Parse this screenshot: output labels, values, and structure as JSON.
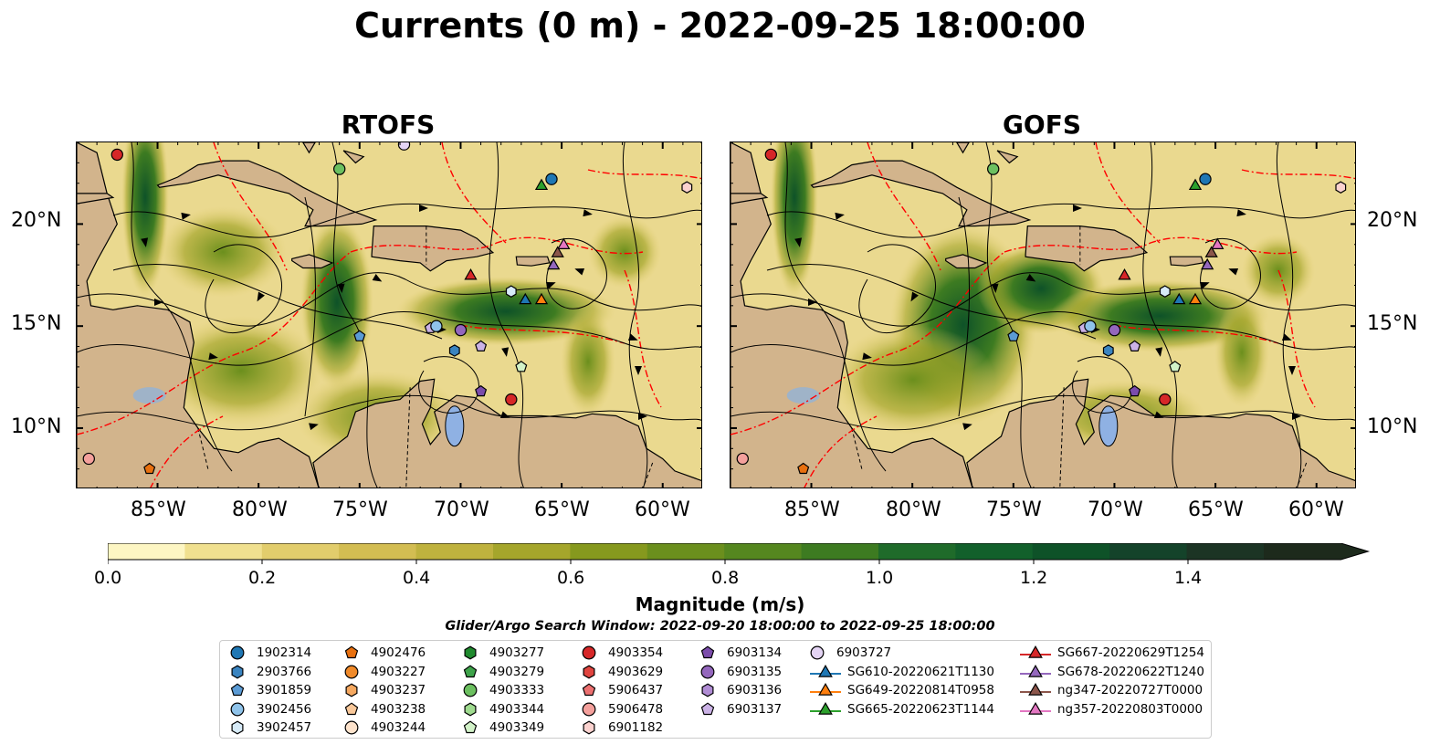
{
  "title": "Currents (0 m) - 2022-09-25 18:00:00",
  "panels": [
    {
      "title": "RTOFS"
    },
    {
      "title": "GOFS"
    }
  ],
  "axes": {
    "lat_labels": [
      "20°N",
      "15°N",
      "10°N"
    ],
    "lon_labels": [
      "85°W",
      "80°W",
      "75°W",
      "70°W",
      "65°W",
      "60°W"
    ]
  },
  "colorbar": {
    "label": "Magnitude (m/s)",
    "tick_labels": [
      "0.0",
      "0.2",
      "0.4",
      "0.6",
      "0.8",
      "1.0",
      "1.2",
      "1.4"
    ],
    "colors": [
      "#fdf6c3",
      "#f0e08f",
      "#e2cd6c",
      "#d3bd52",
      "#bfb23e",
      "#a5a62b",
      "#86991e",
      "#6b8f1d",
      "#55871f",
      "#3d7b21",
      "#1f6b2a",
      "#12602b",
      "#0e5228",
      "#14432a",
      "#1c3424",
      "#1d2a1c"
    ]
  },
  "search_window": "Glider/Argo Search Window: 2022-09-20 18:00:00 to 2022-09-25 18:00:00",
  "legend": {
    "columns": [
      [
        {
          "label": "1902314",
          "marker": "circle",
          "color": "#1f77b4"
        },
        {
          "label": "2903766",
          "marker": "hexagon",
          "color": "#3a84c0"
        },
        {
          "label": "3901859",
          "marker": "pentagon",
          "color": "#5b9bd5"
        },
        {
          "label": "3902456",
          "marker": "circle",
          "color": "#8fc3ea"
        },
        {
          "label": "3902457",
          "marker": "hexagon",
          "color": "#d7ebf8"
        }
      ],
      [
        {
          "label": "4902476",
          "marker": "pentagon",
          "color": "#e8700f"
        },
        {
          "label": "4903227",
          "marker": "circle",
          "color": "#f08a2a"
        },
        {
          "label": "4903237",
          "marker": "hexagon",
          "color": "#f5a860"
        },
        {
          "label": "4903238",
          "marker": "pentagon",
          "color": "#f9c89a"
        },
        {
          "label": "4903244",
          "marker": "circle",
          "color": "#fde3cc"
        }
      ],
      [
        {
          "label": "4903277",
          "marker": "hexagon",
          "color": "#1f8a2e"
        },
        {
          "label": "4903279",
          "marker": "pentagon",
          "color": "#3ea34a"
        },
        {
          "label": "4903333",
          "marker": "circle",
          "color": "#6cc060"
        },
        {
          "label": "4903344",
          "marker": "hexagon",
          "color": "#9fdb8f"
        },
        {
          "label": "4903349",
          "marker": "pentagon",
          "color": "#d2f2c8"
        }
      ],
      [
        {
          "label": "4903354",
          "marker": "circle",
          "color": "#d62728"
        },
        {
          "label": "4903629",
          "marker": "hexagon",
          "color": "#e0443f"
        },
        {
          "label": "5906437",
          "marker": "pentagon",
          "color": "#ec7070"
        },
        {
          "label": "5906478",
          "marker": "circle",
          "color": "#f4a09c"
        },
        {
          "label": "6901182",
          "marker": "hexagon",
          "color": "#fbd2cf"
        }
      ],
      [
        {
          "label": "6903134",
          "marker": "pentagon",
          "color": "#7b4cab"
        },
        {
          "label": "6903135",
          "marker": "circle",
          "color": "#9467bd"
        },
        {
          "label": "6903136",
          "marker": "hexagon",
          "color": "#b08cd4"
        },
        {
          "label": "6903137",
          "marker": "pentagon",
          "color": "#cbb2e6"
        }
      ],
      [
        {
          "label": "6903727",
          "marker": "circle",
          "color": "#e4d4f4"
        },
        {
          "label": "SG610-20220621T1130",
          "marker": "triangle-line",
          "color": "#1f77b4"
        },
        {
          "label": "SG649-20220814T0958",
          "marker": "triangle-line",
          "color": "#ff7f0e"
        },
        {
          "label": "SG665-20220623T1144",
          "marker": "triangle-line",
          "color": "#2ca02c"
        }
      ],
      [
        {
          "label": "SG667-20220629T1254",
          "marker": "triangle-line",
          "color": "#d62728"
        },
        {
          "label": "SG678-20220622T1240",
          "marker": "triangle-line",
          "color": "#9467bd"
        },
        {
          "label": "ng347-20220727T0000",
          "marker": "triangle-line",
          "color": "#8c564b"
        },
        {
          "label": "ng357-20220803T0000",
          "marker": "triangle-line",
          "color": "#e377c2"
        }
      ]
    ]
  },
  "map_colors": {
    "land": "#d2b48c",
    "ocean_base": "#ead98f",
    "lakes": "#8fb1e3",
    "eez": "#ff0000"
  },
  "extent": {
    "lon": [
      -89,
      -58
    ],
    "lat": [
      7,
      24
    ]
  }
}
